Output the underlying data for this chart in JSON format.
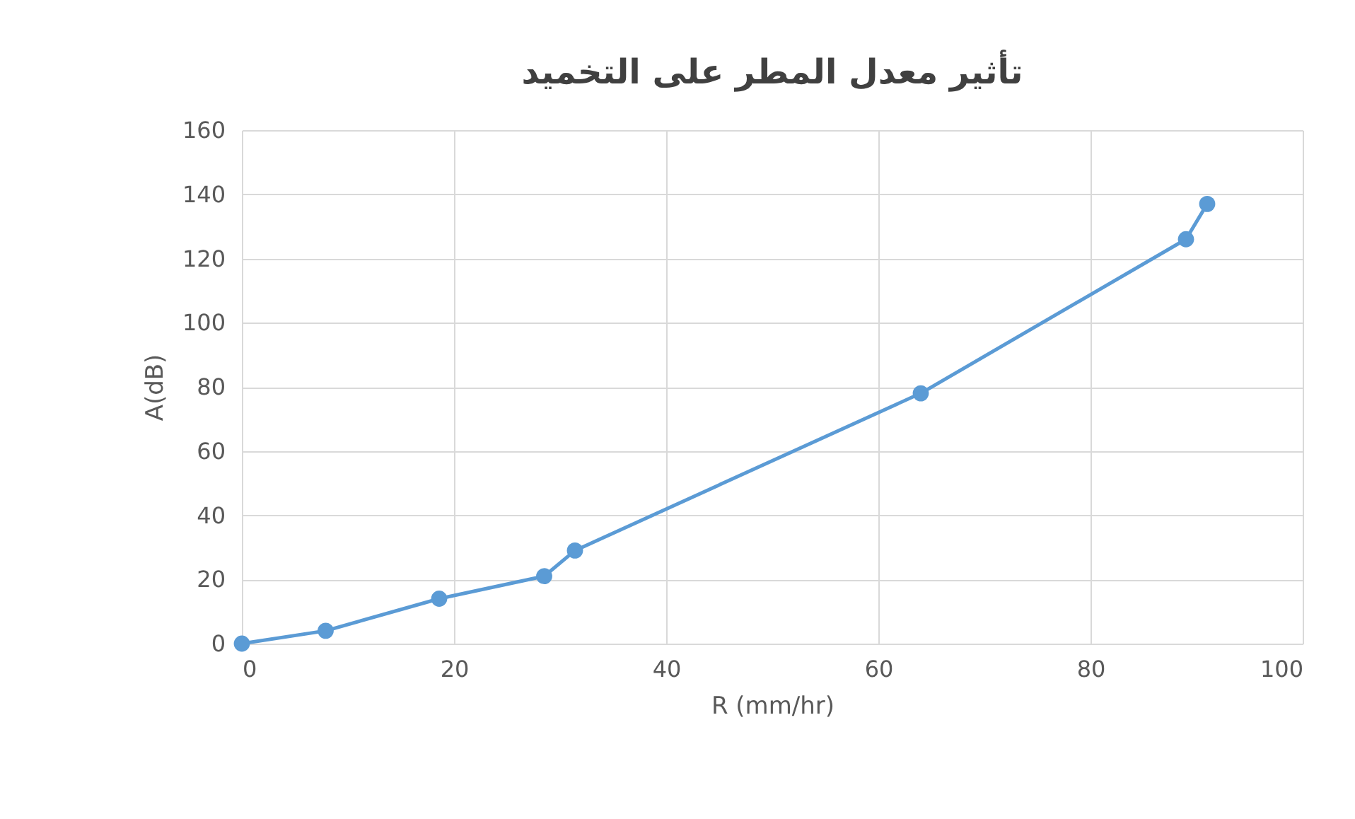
{
  "chart_data": {
    "type": "line",
    "title": "تأثير معدل المطر على التخميد",
    "xlabel": "R (mm/hr)",
    "ylabel": "A(dB)",
    "x": [
      0,
      7.9,
      18.6,
      28.5,
      31.4,
      64,
      89,
      91
    ],
    "series": [
      {
        "color": "#5b9bd5",
        "values": [
          0,
          4,
          14,
          21,
          29,
          78,
          126,
          137
        ]
      }
    ],
    "xlim": [
      0,
      100
    ],
    "xticks": [
      0,
      20,
      40,
      60,
      80,
      100
    ],
    "ylim": [
      0,
      160
    ],
    "yticks": [
      0,
      20,
      40,
      60,
      80,
      100,
      120,
      140,
      160
    ],
    "grid": true,
    "marker": "circle",
    "line_style": "solid"
  }
}
